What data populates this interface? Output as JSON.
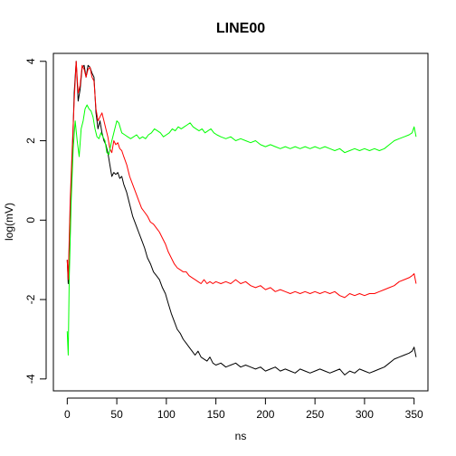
{
  "chart_data": {
    "type": "line",
    "title": "LINE00",
    "xlabel": "ns",
    "ylabel": "log(mV)",
    "xlim": [
      -14,
      364
    ],
    "ylim": [
      -4.3,
      4.2
    ],
    "x_ticks": [
      0,
      50,
      100,
      150,
      200,
      250,
      300,
      350
    ],
    "y_ticks": [
      -4,
      -2,
      0,
      2,
      4
    ],
    "grid": false,
    "series": [
      {
        "color": "#000000",
        "points": [
          [
            0,
            -1.0
          ],
          [
            1,
            -1.6
          ],
          [
            3,
            0.2
          ],
          [
            5,
            1.5
          ],
          [
            7,
            3.2
          ],
          [
            9,
            4.0
          ],
          [
            11,
            3.0
          ],
          [
            13,
            3.3
          ],
          [
            15,
            3.85
          ],
          [
            17,
            3.9
          ],
          [
            19,
            3.6
          ],
          [
            21,
            3.9
          ],
          [
            23,
            3.85
          ],
          [
            25,
            3.7
          ],
          [
            27,
            3.6
          ],
          [
            29,
            2.7
          ],
          [
            31,
            2.3
          ],
          [
            33,
            2.5
          ],
          [
            35,
            2.2
          ],
          [
            37,
            2.0
          ],
          [
            39,
            1.9
          ],
          [
            41,
            1.7
          ],
          [
            43,
            1.4
          ],
          [
            45,
            1.1
          ],
          [
            47,
            1.2
          ],
          [
            49,
            1.15
          ],
          [
            51,
            1.2
          ],
          [
            53,
            1.05
          ],
          [
            55,
            1.1
          ],
          [
            57,
            0.9
          ],
          [
            60,
            0.7
          ],
          [
            63,
            0.4
          ],
          [
            66,
            0.1
          ],
          [
            69,
            -0.1
          ],
          [
            72,
            -0.3
          ],
          [
            75,
            -0.5
          ],
          [
            78,
            -0.7
          ],
          [
            81,
            -0.95
          ],
          [
            84,
            -1.1
          ],
          [
            87,
            -1.3
          ],
          [
            90,
            -1.4
          ],
          [
            93,
            -1.5
          ],
          [
            96,
            -1.7
          ],
          [
            99,
            -1.85
          ],
          [
            102,
            -2.1
          ],
          [
            105,
            -2.35
          ],
          [
            108,
            -2.55
          ],
          [
            111,
            -2.75
          ],
          [
            114,
            -2.85
          ],
          [
            117,
            -3.0
          ],
          [
            120,
            -3.1
          ],
          [
            123,
            -3.2
          ],
          [
            126,
            -3.3
          ],
          [
            129,
            -3.4
          ],
          [
            132,
            -3.3
          ],
          [
            135,
            -3.45
          ],
          [
            138,
            -3.5
          ],
          [
            141,
            -3.55
          ],
          [
            144,
            -3.45
          ],
          [
            147,
            -3.6
          ],
          [
            150,
            -3.65
          ],
          [
            155,
            -3.6
          ],
          [
            160,
            -3.7
          ],
          [
            165,
            -3.65
          ],
          [
            170,
            -3.6
          ],
          [
            175,
            -3.7
          ],
          [
            180,
            -3.65
          ],
          [
            185,
            -3.7
          ],
          [
            190,
            -3.75
          ],
          [
            195,
            -3.7
          ],
          [
            200,
            -3.8
          ],
          [
            205,
            -3.75
          ],
          [
            210,
            -3.7
          ],
          [
            215,
            -3.8
          ],
          [
            220,
            -3.75
          ],
          [
            225,
            -3.8
          ],
          [
            230,
            -3.85
          ],
          [
            235,
            -3.75
          ],
          [
            240,
            -3.8
          ],
          [
            245,
            -3.85
          ],
          [
            250,
            -3.8
          ],
          [
            255,
            -3.75
          ],
          [
            260,
            -3.8
          ],
          [
            265,
            -3.85
          ],
          [
            270,
            -3.8
          ],
          [
            275,
            -3.75
          ],
          [
            280,
            -3.9
          ],
          [
            285,
            -3.8
          ],
          [
            290,
            -3.85
          ],
          [
            295,
            -3.75
          ],
          [
            300,
            -3.8
          ],
          [
            305,
            -3.85
          ],
          [
            310,
            -3.8
          ],
          [
            315,
            -3.75
          ],
          [
            320,
            -3.7
          ],
          [
            325,
            -3.6
          ],
          [
            330,
            -3.5
          ],
          [
            335,
            -3.45
          ],
          [
            340,
            -3.4
          ],
          [
            345,
            -3.35
          ],
          [
            348,
            -3.3
          ],
          [
            350,
            -3.2
          ],
          [
            352,
            -3.45
          ]
        ]
      },
      {
        "color": "#ff0000",
        "points": [
          [
            0,
            -1.0
          ],
          [
            1,
            -1.5
          ],
          [
            3,
            0.5
          ],
          [
            5,
            1.8
          ],
          [
            7,
            3.0
          ],
          [
            9,
            4.0
          ],
          [
            11,
            3.2
          ],
          [
            13,
            3.4
          ],
          [
            15,
            3.9
          ],
          [
            17,
            3.8
          ],
          [
            19,
            3.6
          ],
          [
            21,
            3.8
          ],
          [
            23,
            3.85
          ],
          [
            25,
            3.6
          ],
          [
            27,
            3.5
          ],
          [
            29,
            2.8
          ],
          [
            31,
            2.5
          ],
          [
            33,
            2.6
          ],
          [
            35,
            2.7
          ],
          [
            37,
            2.5
          ],
          [
            39,
            2.3
          ],
          [
            41,
            2.1
          ],
          [
            43,
            1.8
          ],
          [
            45,
            1.7
          ],
          [
            47,
            2.0
          ],
          [
            49,
            1.9
          ],
          [
            51,
            1.95
          ],
          [
            53,
            1.8
          ],
          [
            55,
            1.75
          ],
          [
            57,
            1.6
          ],
          [
            60,
            1.4
          ],
          [
            63,
            1.1
          ],
          [
            66,
            0.9
          ],
          [
            69,
            0.7
          ],
          [
            72,
            0.5
          ],
          [
            75,
            0.3
          ],
          [
            78,
            0.2
          ],
          [
            81,
            0.1
          ],
          [
            84,
            -0.05
          ],
          [
            87,
            -0.1
          ],
          [
            90,
            -0.2
          ],
          [
            93,
            -0.3
          ],
          [
            96,
            -0.45
          ],
          [
            99,
            -0.6
          ],
          [
            102,
            -0.8
          ],
          [
            105,
            -0.95
          ],
          [
            108,
            -1.1
          ],
          [
            111,
            -1.2
          ],
          [
            114,
            -1.25
          ],
          [
            117,
            -1.3
          ],
          [
            120,
            -1.3
          ],
          [
            123,
            -1.4
          ],
          [
            126,
            -1.45
          ],
          [
            129,
            -1.5
          ],
          [
            132,
            -1.55
          ],
          [
            135,
            -1.6
          ],
          [
            138,
            -1.5
          ],
          [
            141,
            -1.6
          ],
          [
            144,
            -1.55
          ],
          [
            147,
            -1.6
          ],
          [
            150,
            -1.55
          ],
          [
            155,
            -1.6
          ],
          [
            160,
            -1.55
          ],
          [
            165,
            -1.6
          ],
          [
            170,
            -1.5
          ],
          [
            175,
            -1.6
          ],
          [
            180,
            -1.55
          ],
          [
            185,
            -1.65
          ],
          [
            190,
            -1.7
          ],
          [
            195,
            -1.65
          ],
          [
            200,
            -1.75
          ],
          [
            205,
            -1.7
          ],
          [
            210,
            -1.8
          ],
          [
            215,
            -1.75
          ],
          [
            220,
            -1.8
          ],
          [
            225,
            -1.85
          ],
          [
            230,
            -1.8
          ],
          [
            235,
            -1.85
          ],
          [
            240,
            -1.8
          ],
          [
            245,
            -1.85
          ],
          [
            250,
            -1.8
          ],
          [
            255,
            -1.85
          ],
          [
            260,
            -1.8
          ],
          [
            265,
            -1.85
          ],
          [
            270,
            -1.8
          ],
          [
            275,
            -1.9
          ],
          [
            280,
            -1.95
          ],
          [
            285,
            -1.85
          ],
          [
            290,
            -1.9
          ],
          [
            295,
            -1.85
          ],
          [
            300,
            -1.9
          ],
          [
            305,
            -1.85
          ],
          [
            310,
            -1.85
          ],
          [
            315,
            -1.8
          ],
          [
            320,
            -1.75
          ],
          [
            325,
            -1.7
          ],
          [
            330,
            -1.65
          ],
          [
            335,
            -1.55
          ],
          [
            340,
            -1.5
          ],
          [
            345,
            -1.45
          ],
          [
            348,
            -1.4
          ],
          [
            350,
            -1.35
          ],
          [
            352,
            -1.6
          ]
        ]
      },
      {
        "color": "#00ff00",
        "points": [
          [
            0,
            -2.8
          ],
          [
            1,
            -3.4
          ],
          [
            2,
            -1.5
          ],
          [
            4,
            0.5
          ],
          [
            6,
            1.8
          ],
          [
            8,
            2.5
          ],
          [
            10,
            2.0
          ],
          [
            12,
            1.6
          ],
          [
            14,
            2.3
          ],
          [
            16,
            2.5
          ],
          [
            18,
            2.8
          ],
          [
            20,
            2.9
          ],
          [
            22,
            2.8
          ],
          [
            24,
            2.75
          ],
          [
            26,
            2.6
          ],
          [
            28,
            2.3
          ],
          [
            30,
            2.1
          ],
          [
            32,
            2.05
          ],
          [
            34,
            2.2
          ],
          [
            36,
            2.1
          ],
          [
            38,
            2.0
          ],
          [
            40,
            1.7
          ],
          [
            42,
            1.65
          ],
          [
            44,
            1.9
          ],
          [
            46,
            2.1
          ],
          [
            48,
            2.3
          ],
          [
            50,
            2.5
          ],
          [
            52,
            2.45
          ],
          [
            55,
            2.2
          ],
          [
            58,
            2.15
          ],
          [
            61,
            2.1
          ],
          [
            64,
            2.05
          ],
          [
            67,
            2.1
          ],
          [
            70,
            2.15
          ],
          [
            73,
            2.05
          ],
          [
            76,
            2.1
          ],
          [
            79,
            2.05
          ],
          [
            82,
            2.15
          ],
          [
            85,
            2.2
          ],
          [
            88,
            2.3
          ],
          [
            91,
            2.25
          ],
          [
            94,
            2.2
          ],
          [
            97,
            2.1
          ],
          [
            100,
            2.15
          ],
          [
            103,
            2.2
          ],
          [
            106,
            2.3
          ],
          [
            109,
            2.25
          ],
          [
            112,
            2.35
          ],
          [
            115,
            2.3
          ],
          [
            118,
            2.35
          ],
          [
            121,
            2.4
          ],
          [
            124,
            2.45
          ],
          [
            127,
            2.35
          ],
          [
            130,
            2.3
          ],
          [
            133,
            2.25
          ],
          [
            136,
            2.3
          ],
          [
            139,
            2.2
          ],
          [
            142,
            2.25
          ],
          [
            145,
            2.3
          ],
          [
            148,
            2.2
          ],
          [
            151,
            2.15
          ],
          [
            155,
            2.1
          ],
          [
            160,
            2.05
          ],
          [
            165,
            2.1
          ],
          [
            170,
            2.0
          ],
          [
            175,
            2.05
          ],
          [
            180,
            2.0
          ],
          [
            185,
            1.95
          ],
          [
            190,
            2.0
          ],
          [
            195,
            1.9
          ],
          [
            200,
            1.85
          ],
          [
            205,
            1.9
          ],
          [
            210,
            1.85
          ],
          [
            215,
            1.8
          ],
          [
            220,
            1.85
          ],
          [
            225,
            1.8
          ],
          [
            230,
            1.85
          ],
          [
            235,
            1.8
          ],
          [
            240,
            1.85
          ],
          [
            245,
            1.8
          ],
          [
            250,
            1.85
          ],
          [
            255,
            1.8
          ],
          [
            260,
            1.85
          ],
          [
            265,
            1.8
          ],
          [
            270,
            1.75
          ],
          [
            275,
            1.8
          ],
          [
            280,
            1.7
          ],
          [
            285,
            1.75
          ],
          [
            290,
            1.8
          ],
          [
            295,
            1.75
          ],
          [
            300,
            1.8
          ],
          [
            305,
            1.75
          ],
          [
            310,
            1.8
          ],
          [
            315,
            1.75
          ],
          [
            320,
            1.8
          ],
          [
            325,
            1.9
          ],
          [
            330,
            2.0
          ],
          [
            335,
            2.05
          ],
          [
            340,
            2.1
          ],
          [
            345,
            2.15
          ],
          [
            348,
            2.2
          ],
          [
            350,
            2.35
          ],
          [
            352,
            2.1
          ]
        ]
      }
    ]
  }
}
